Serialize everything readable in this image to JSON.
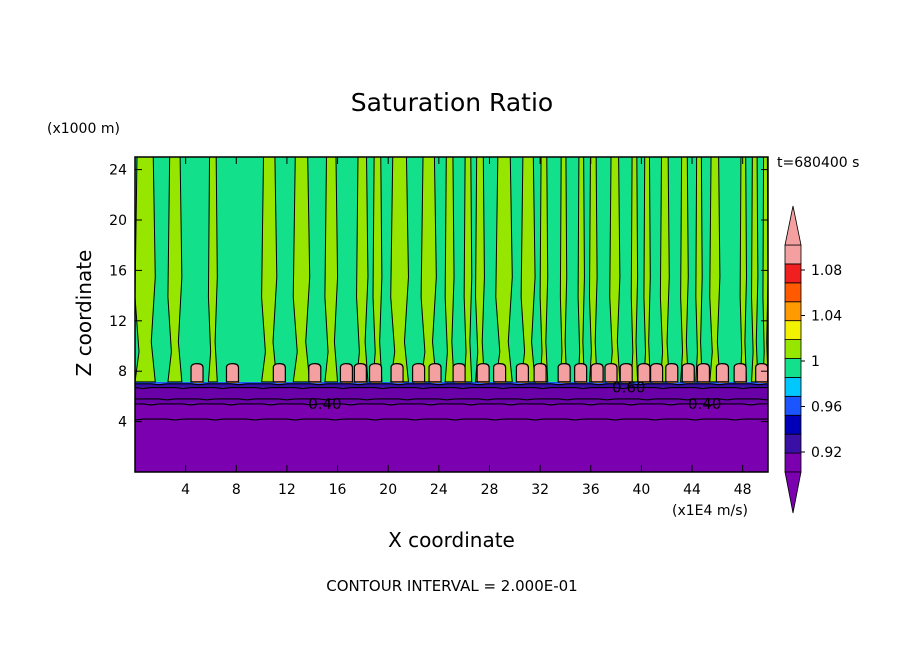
{
  "chart_data": {
    "type": "heatmap",
    "title": "Saturation Ratio",
    "xlabel": "X coordinate",
    "ylabel": "Z coordinate",
    "x_unit": "(x1E4 m/s)",
    "y_unit": "(x1000 m)",
    "time_label": "t=680400 s",
    "footer": "CONTOUR INTERVAL = 2.000E-01",
    "xlim": [
      0,
      50
    ],
    "ylim": [
      0,
      25
    ],
    "x_ticks": [
      4,
      8,
      12,
      16,
      20,
      24,
      28,
      32,
      36,
      40,
      44,
      48
    ],
    "y_ticks": [
      4,
      8,
      12,
      16,
      20,
      24
    ],
    "contour_interval": 0.2,
    "contour_labels": [
      {
        "text": "0.40",
        "x": 15.0,
        "y": 5.4
      },
      {
        "text": "0.60",
        "x": 39.0,
        "y": 6.7
      },
      {
        "text": "0.40",
        "x": 45.0,
        "y": 5.4
      }
    ],
    "colorbar": {
      "labels": [
        "1.08",
        "1.04",
        "1",
        "0.96",
        "0.92"
      ],
      "levels": [
        {
          "color": "#7a00b0"
        },
        {
          "color": "#3a0fa6"
        },
        {
          "color": "#0000b8"
        },
        {
          "color": "#1a55ff"
        },
        {
          "color": "#00c8ff"
        },
        {
          "color": "#12e08a"
        },
        {
          "color": "#96e600"
        },
        {
          "color": "#f2f200"
        },
        {
          "color": "#ff9a00"
        },
        {
          "color": "#ff5a00"
        },
        {
          "color": "#f02020"
        },
        {
          "color": "#f5a0a0"
        }
      ]
    },
    "fields": {
      "layers": [
        {
          "from": 0,
          "to": 5.4,
          "color": "#7a00b0"
        },
        {
          "from": 5.4,
          "to": 6.7,
          "color": "#6a00a8"
        },
        {
          "from": 6.7,
          "to": 7.0,
          "color": "#3a0fa6"
        },
        {
          "from": 7.0,
          "to": 7.15,
          "color": "#1a55ff"
        },
        {
          "from": 7.15,
          "to": 25,
          "color": "#12e08a"
        }
      ],
      "columns_green": [
        [
          0,
          1.6
        ],
        [
          2.6,
          3.7
        ],
        [
          5.8,
          6.5
        ],
        [
          10.0,
          11.2
        ],
        [
          12.5,
          13.8
        ],
        [
          15.0,
          16.0
        ],
        [
          17.5,
          18.4
        ],
        [
          18.8,
          19.5
        ],
        [
          20.2,
          21.6
        ],
        [
          22.6,
          23.8
        ],
        [
          24.5,
          25.2
        ],
        [
          26.0,
          26.6
        ],
        [
          26.9,
          27.6
        ],
        [
          28.5,
          29.8
        ],
        [
          30.5,
          31.6
        ],
        [
          32.0,
          32.6
        ],
        [
          33.6,
          34.1
        ],
        [
          35.0,
          35.5
        ],
        [
          35.9,
          36.5
        ],
        [
          37.5,
          38.3
        ],
        [
          39.2,
          39.7
        ],
        [
          40.2,
          40.7
        ],
        [
          41.5,
          42.2
        ],
        [
          43.1,
          43.7
        ],
        [
          44.3,
          44.8
        ],
        [
          45.4,
          46.2
        ],
        [
          47.8,
          48.3
        ],
        [
          48.7,
          49.2
        ],
        [
          49.6,
          50
        ]
      ],
      "pink_cells": [
        4.9,
        7.7,
        11.4,
        14.2,
        16.7,
        17.8,
        19.0,
        20.7,
        22.4,
        23.7,
        25.6,
        27.5,
        28.8,
        30.6,
        32.0,
        33.9,
        35.2,
        36.5,
        37.6,
        38.8,
        40.2,
        41.2,
        42.4,
        43.7,
        44.9,
        46.4,
        47.8,
        49.5
      ],
      "green_color": "#96e600",
      "pink_color": "#f5a0a0",
      "orange_color": "#ff9a00",
      "isolines_y": [
        4.2,
        5.4,
        5.8,
        6.7,
        7.0
      ]
    }
  }
}
